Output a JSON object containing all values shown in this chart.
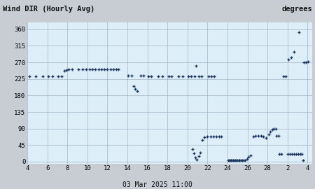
{
  "title_left": "Wind DIR (Hourly Avg)",
  "title_right": "degrees",
  "xlabel": "03 Mar 2025 11:00",
  "header_bg": "#c8cdd4",
  "plot_bg": "#ddeef8",
  "outer_bg": "#c8cdd4",
  "marker_color": "#1a3560",
  "xtick_pos": [
    4,
    6,
    8,
    10,
    12,
    14,
    16,
    18,
    20,
    22,
    24,
    26,
    28,
    30,
    32
  ],
  "xtick_labels": [
    "4",
    "6",
    "8",
    "10",
    "12",
    "14",
    "16",
    "18",
    "20",
    "22",
    "24",
    "26",
    "28",
    "2",
    "4"
  ],
  "yticks": [
    0,
    45,
    90,
    135,
    180,
    225,
    270,
    315,
    360
  ],
  "ylim": [
    -5,
    378
  ],
  "points": [
    [
      4.2,
      232
    ],
    [
      4.8,
      232
    ],
    [
      5.5,
      232
    ],
    [
      6.1,
      232
    ],
    [
      6.5,
      233
    ],
    [
      7.1,
      232
    ],
    [
      7.4,
      232
    ],
    [
      7.7,
      247
    ],
    [
      7.9,
      250
    ],
    [
      8.1,
      252
    ],
    [
      8.5,
      252
    ],
    [
      9.1,
      252
    ],
    [
      9.5,
      252
    ],
    [
      9.9,
      252
    ],
    [
      10.2,
      252
    ],
    [
      10.5,
      252
    ],
    [
      10.8,
      252
    ],
    [
      11.1,
      252
    ],
    [
      11.4,
      252
    ],
    [
      11.7,
      252
    ],
    [
      12.0,
      252
    ],
    [
      12.3,
      252
    ],
    [
      12.6,
      252
    ],
    [
      12.9,
      252
    ],
    [
      13.1,
      252
    ],
    [
      14.1,
      235
    ],
    [
      14.4,
      235
    ],
    [
      14.6,
      205
    ],
    [
      14.8,
      198
    ],
    [
      15.0,
      192
    ],
    [
      15.3,
      235
    ],
    [
      15.6,
      235
    ],
    [
      16.1,
      232
    ],
    [
      16.4,
      232
    ],
    [
      17.1,
      232
    ],
    [
      17.5,
      232
    ],
    [
      18.1,
      232
    ],
    [
      18.4,
      232
    ],
    [
      19.1,
      232
    ],
    [
      19.5,
      232
    ],
    [
      20.1,
      232
    ],
    [
      20.4,
      232
    ],
    [
      20.7,
      232
    ],
    [
      20.85,
      260
    ],
    [
      21.1,
      232
    ],
    [
      21.4,
      232
    ],
    [
      22.1,
      232
    ],
    [
      22.4,
      232
    ],
    [
      22.7,
      232
    ],
    [
      20.5,
      35
    ],
    [
      20.65,
      22
    ],
    [
      20.8,
      12
    ],
    [
      20.95,
      5
    ],
    [
      21.1,
      15
    ],
    [
      21.25,
      25
    ],
    [
      21.5,
      58
    ],
    [
      21.7,
      67
    ],
    [
      22.0,
      68
    ],
    [
      22.3,
      68
    ],
    [
      22.6,
      68
    ],
    [
      22.9,
      68
    ],
    [
      23.15,
      68
    ],
    [
      23.4,
      68
    ],
    [
      24.05,
      4
    ],
    [
      24.15,
      4
    ],
    [
      24.25,
      4
    ],
    [
      24.35,
      4
    ],
    [
      24.45,
      4
    ],
    [
      24.55,
      4
    ],
    [
      24.65,
      4
    ],
    [
      24.75,
      4
    ],
    [
      24.85,
      4
    ],
    [
      24.95,
      4
    ],
    [
      25.1,
      4
    ],
    [
      25.2,
      4
    ],
    [
      25.3,
      4
    ],
    [
      25.45,
      4
    ],
    [
      25.6,
      4
    ],
    [
      25.75,
      4
    ],
    [
      25.95,
      7
    ],
    [
      26.1,
      14
    ],
    [
      26.3,
      17
    ],
    [
      26.6,
      68
    ],
    [
      26.8,
      70
    ],
    [
      27.1,
      70
    ],
    [
      27.35,
      70
    ],
    [
      27.6,
      68
    ],
    [
      27.85,
      65
    ],
    [
      28.1,
      75
    ],
    [
      28.3,
      82
    ],
    [
      28.5,
      88
    ],
    [
      28.65,
      90
    ],
    [
      28.85,
      90
    ],
    [
      28.9,
      70
    ],
    [
      29.1,
      70
    ],
    [
      29.2,
      20
    ],
    [
      29.4,
      20
    ],
    [
      29.6,
      232
    ],
    [
      29.8,
      232
    ],
    [
      30.05,
      20
    ],
    [
      30.25,
      20
    ],
    [
      30.45,
      20
    ],
    [
      30.65,
      20
    ],
    [
      30.85,
      20
    ],
    [
      31.05,
      20
    ],
    [
      31.25,
      20
    ],
    [
      31.45,
      20
    ],
    [
      31.55,
      4
    ],
    [
      30.1,
      278
    ],
    [
      30.35,
      283
    ],
    [
      30.65,
      298
    ],
    [
      31.15,
      352
    ],
    [
      31.6,
      270
    ],
    [
      31.85,
      270
    ],
    [
      32.05,
      272
    ]
  ]
}
